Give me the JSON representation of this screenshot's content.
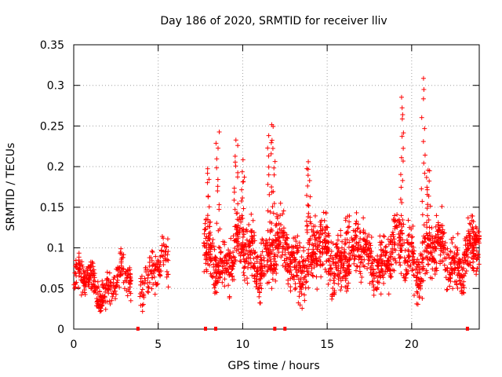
{
  "chart_data": {
    "type": "scatter",
    "title": "Day 186 of 2020, SRMTID for receiver lliv",
    "xlabel": "GPS time / hours",
    "ylabel": "SRMTID / TECUs",
    "xlim": [
      0,
      24
    ],
    "ylim": [
      0,
      0.35
    ],
    "x_ticks": [
      0,
      5,
      10,
      15,
      20
    ],
    "y_ticks": [
      0,
      0.05,
      0.1,
      0.15,
      0.2,
      0.25,
      0.3,
      0.35
    ],
    "x_tick_labels": [
      "0",
      "5",
      "10",
      "15",
      "20"
    ],
    "y_tick_labels": [
      "0",
      "0.05",
      "0.1",
      "0.15",
      "0.2",
      "0.25",
      "0.3",
      "0.35"
    ],
    "grid": true,
    "marker": "plus",
    "color": "#ff0000",
    "series": [
      {
        "name": "SRMTID",
        "envelopes": [
          {
            "x_start": 0.0,
            "x_end": 3.4,
            "baseline": 0.055,
            "spread": 0.03,
            "density": 90
          },
          {
            "x_start": 3.9,
            "x_end": 5.6,
            "baseline": 0.07,
            "spread": 0.035,
            "density": 70
          },
          {
            "x_start": 7.7,
            "x_end": 24.0,
            "baseline": 0.09,
            "spread": 0.05,
            "density": 110
          }
        ],
        "peaks": [
          {
            "x": 7.9,
            "y": 0.2
          },
          {
            "x": 8.5,
            "y": 0.243
          },
          {
            "x": 9.6,
            "y": 0.23
          },
          {
            "x": 10.0,
            "y": 0.205
          },
          {
            "x": 11.6,
            "y": 0.252
          },
          {
            "x": 11.8,
            "y": 0.245
          },
          {
            "x": 13.9,
            "y": 0.205
          },
          {
            "x": 16.2,
            "y": 0.14
          },
          {
            "x": 19.4,
            "y": 0.285
          },
          {
            "x": 20.7,
            "y": 0.31
          },
          {
            "x": 21.0,
            "y": 0.195
          },
          {
            "x": 23.9,
            "y": 0.115
          }
        ],
        "zero_markers_x": [
          3.8,
          7.8,
          8.4,
          11.9,
          12.5,
          23.3
        ]
      }
    ]
  }
}
